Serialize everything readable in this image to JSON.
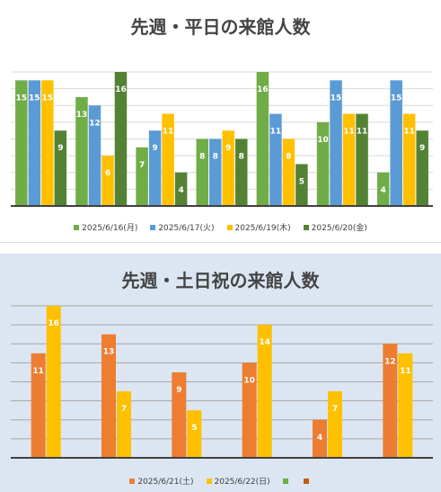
{
  "charts": [
    {
      "title": "先週・平日の来館人数",
      "type": "bar",
      "categories": [
        "",
        "",
        "",
        "",
        "",
        "",
        ""
      ],
      "series": [
        {
          "name": "2025/6/16(月)",
          "color": "#70ad47",
          "values": [
            15,
            13,
            7,
            8,
            16,
            10,
            4
          ]
        },
        {
          "name": "2025/6/17(火)",
          "color": "#5b9bd5",
          "values": [
            15,
            12,
            9,
            8,
            11,
            15,
            15
          ]
        },
        {
          "name": "2025/6/19(木)",
          "color": "#ffc000",
          "values": [
            15,
            6,
            11,
            9,
            8,
            11,
            11
          ]
        },
        {
          "name": "2025/6/20(金)",
          "color": "#548235",
          "values": [
            9,
            16,
            4,
            8,
            5,
            11,
            9
          ]
        }
      ],
      "ylim": [
        0,
        16
      ],
      "grid": true,
      "legend": "bottom"
    },
    {
      "title": "先週・土日祝の来館人数",
      "type": "bar",
      "categories": [
        "",
        "",
        "",
        "",
        "",
        ""
      ],
      "series": [
        {
          "name": "2025/6/21(土)",
          "color": "#ed7d31",
          "values": [
            11,
            13,
            9,
            10,
            4,
            12
          ]
        },
        {
          "name": "2025/6/22(日)",
          "color": "#ffc000",
          "values": [
            16,
            7,
            5,
            14,
            7,
            11
          ]
        },
        {
          "name": "",
          "color": "#70ad47",
          "values": []
        },
        {
          "name": "",
          "color": "#c55a11",
          "values": []
        }
      ],
      "ylim": [
        0,
        16
      ],
      "grid": true,
      "legend": "bottom"
    }
  ]
}
